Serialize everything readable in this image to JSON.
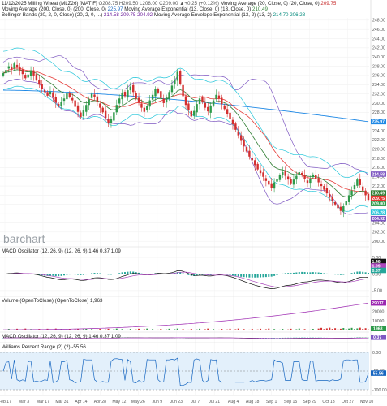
{
  "header": {
    "line1_prefix": "11/12/2025 Milling Wheat (MLZ26) [MATIF] ",
    "line1_ohlc": "O208.75 H209.50 L208.00 C209.00 ▲+0.25 (+0.12%)",
    "line1_ma": " Moving Average (20, Close, 0) (20, Close, 0) ",
    "line1_ma_val": "209.75",
    "line2_ma": "Moving Average (200, Close, 0) (200, Close, 0) ",
    "line2_ma_val": "225.97",
    "line2_ema": " Moving Average Exponential (13, Close, 0) (13, Close, 0) ",
    "line2_ema_val": "210.49",
    "line3_bb": "Bollinger Bands (20, 2, 0, Close) (20, 2, 0, ...) ",
    "line3_bb_vals": "214.58 209.75 204.92",
    "line3_env": " Moving Average Envelope Exponential (13, 2) (13, 2) ",
    "line3_env_vals": "214.70 206.28"
  },
  "logo": "barchart",
  "panels": {
    "macd1_title": "MACD Oscillator (12, 26, 9) (12, 26, 9) 1.46 0.37 1.09",
    "volume_title": "Volume (OpenToClose) (OpenToClose) 1,963",
    "macd2_title": "MACD Oscillator (12, 26, 9) (12, 26, 9) 1.46 0.37 1.09",
    "williams_title": "Williams Percent Range (2) (2) -55.56"
  },
  "price_badges": {
    "ma200": "225.97",
    "bb_upper": "214.58",
    "ema13": "210.49",
    "ma20": "209.75",
    "last": "209.00",
    "env_low": "206.28",
    "bb_lower": "204.92"
  },
  "indicator_badges": {
    "macd_a": "1.46",
    "macd_b": "1.09",
    "macd_c": "0.37",
    "volume_avg": "29017",
    "volume": "1963",
    "macd2": "0.37",
    "williams": "-55.56"
  },
  "colors": {
    "up": "#2e9a4a",
    "down": "#d32f2f",
    "ma20": "#e53935",
    "ma200": "#1e88e5",
    "ema13": "#2e7d32",
    "bb": "#7e57c2",
    "env": "#26c6da",
    "volume_line": "#9c27b0",
    "williams": "#1565c0",
    "macd_hist": "#26a69a"
  },
  "chart_data": [
    {
      "type": "candlestick",
      "title": "Milling Wheat (MLZ26) [MATIF]",
      "y_ticks": [
        200,
        202,
        204,
        206,
        208,
        210,
        212,
        214,
        216,
        218,
        220,
        222,
        224,
        226,
        228,
        230,
        232,
        234,
        236,
        238,
        240,
        242,
        244,
        246,
        248
      ],
      "x_labels": [
        "Feb 17",
        "Mar 3",
        "Mar 17",
        "Mar 31",
        "Apr 14",
        "Apr 28",
        "May 12",
        "May 26",
        "Jun 9",
        "Jun 23",
        "Jul 7",
        "Jul 21",
        "Aug 4",
        "Aug 18",
        "Sep 1",
        "Sep 15",
        "Sep 29",
        "Oct 13",
        "Oct 27",
        "Nov 10"
      ],
      "ylim": [
        199.5,
        248.5
      ],
      "closes": [
        236.5,
        237.2,
        238.0,
        237.4,
        238.6,
        237.9,
        237.0,
        236.3,
        235.4,
        236.2,
        237.1,
        236.0,
        235.1,
        234.0,
        233.1,
        232.4,
        231.6,
        232.5,
        231.2,
        230.1,
        229.4,
        230.2,
        231.0,
        232.1,
        231.4,
        230.6,
        229.2,
        228.1,
        227.0,
        228.4,
        229.6,
        230.8,
        232.0,
        231.3,
        230.2,
        229.0,
        228.0,
        226.8,
        225.6,
        226.5,
        228.0,
        229.6,
        231.0,
        232.3,
        231.5,
        232.8,
        233.6,
        232.4,
        231.0,
        230.2,
        229.0,
        228.1,
        229.4,
        230.6,
        231.8,
        233.0,
        232.3,
        231.1,
        230.0,
        231.2,
        232.4,
        233.8,
        235.0,
        236.8,
        234.2,
        231.5,
        229.6,
        228.4,
        227.1,
        228.3,
        229.8,
        231.0,
        230.2,
        229.0,
        228.2,
        229.5,
        230.6,
        231.8,
        231.0,
        229.8,
        228.7,
        227.6,
        226.5,
        225.4,
        224.2,
        223.0,
        221.8,
        220.6,
        219.5,
        218.4,
        217.6,
        216.5,
        215.6,
        214.8,
        214.0,
        213.1,
        212.3,
        211.6,
        212.8,
        213.6,
        214.4,
        215.0,
        214.2,
        213.4,
        212.6,
        213.4,
        214.2,
        215.0,
        214.3,
        213.5,
        212.7,
        213.6,
        214.5,
        213.6,
        212.8,
        212.0,
        211.2,
        210.4,
        209.5,
        208.8,
        208.0,
        207.2,
        206.6,
        207.6,
        208.8,
        210.0,
        211.0,
        212.2,
        213.4,
        212.2,
        211.0,
        210.0,
        209.0
      ],
      "ma20_last": 209.75,
      "ma200_last": 225.97,
      "ema13_last": 210.49,
      "bollinger": {
        "upper": 214.58,
        "middle": 209.75,
        "lower": 204.92
      },
      "envelope": {
        "upper": 214.7,
        "lower": 206.28
      },
      "last": 209.0
    },
    {
      "type": "bar+line",
      "title": "MACD Oscillator (12, 26, 9)",
      "y_ticks": [
        5.0,
        0.0,
        -5.0
      ],
      "values": {
        "macd": 1.46,
        "signal": 1.09,
        "histogram": 0.37
      }
    },
    {
      "type": "bar+line",
      "title": "Volume (OpenToClose)",
      "y_ticks": [
        20000,
        10000
      ],
      "values": {
        "volume": 1963,
        "average": 29017
      }
    },
    {
      "type": "bar+line",
      "title": "MACD Oscillator (12, 26, 9)",
      "values": {
        "histogram": 0.37
      }
    },
    {
      "type": "line",
      "title": "Williams Percent Range (2)",
      "y_ticks": [
        0.0,
        -50.0,
        -100.0
      ],
      "values": {
        "last": -55.56
      }
    }
  ]
}
